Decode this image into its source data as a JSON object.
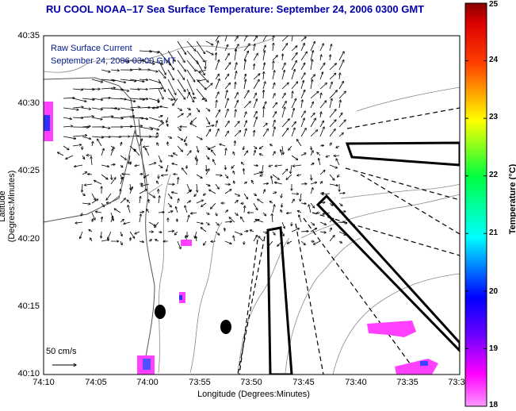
{
  "title": "RU COOL  NOAA–17  Sea Surface Temperature:  September 24, 2006 0300 GMT",
  "legend": {
    "line1": "Raw Surface Current",
    "line2": "September 24, 2006 03:00 GMT"
  },
  "scale_label": "50 cm/s",
  "axes": {
    "xlabel": "Longitude (Degrees:Minutes)",
    "ylabel": "Latitude (Degrees:Minutes)",
    "x_ticks": [
      "74:10",
      "74:05",
      "74:00",
      "73:55",
      "73:50",
      "73:45",
      "73:40",
      "73:35",
      "73:3"
    ],
    "y_ticks": [
      "40:35",
      "40:30",
      "40:25",
      "40:20",
      "40:15",
      "40:10"
    ]
  },
  "colorbar": {
    "label": "Temperature (°C)",
    "ticks": [
      "25",
      "24",
      "23",
      "22",
      "21",
      "20",
      "19",
      "18"
    ],
    "min": 18,
    "max": 25,
    "colors": [
      "#ff00ff",
      "#0000ff",
      "#00ffff",
      "#00ff00",
      "#ffff00",
      "#ff8000",
      "#ff0000",
      "#800000"
    ]
  },
  "colors": {
    "title": "#0000aa",
    "sst_patch": "#ff40ff",
    "land": "#ffffff"
  }
}
